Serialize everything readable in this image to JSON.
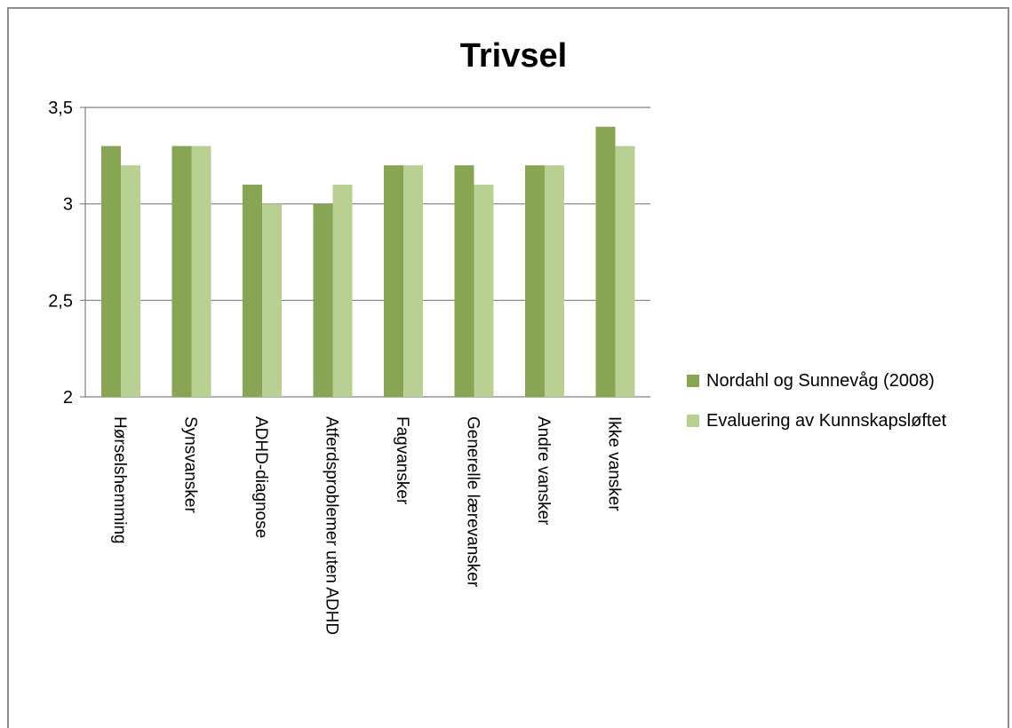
{
  "chart_data": {
    "type": "bar",
    "title": "Trivsel",
    "xlabel": "",
    "ylabel": "",
    "ylim": [
      2,
      3.5
    ],
    "yticks": [
      "2",
      "2,5",
      "3",
      "3,5"
    ],
    "ytick_values": [
      2,
      2.5,
      3,
      3.5
    ],
    "grid": true,
    "legend_position": "right",
    "categories": [
      "Hørselshemming",
      "Synsvansker",
      "ADHD-diagnose",
      "Atferdsproblemer uten ADHD",
      "Fagvansker",
      "Generelle lærevansker",
      "Andre vansker",
      "Ikke vansker"
    ],
    "series": [
      {
        "name": "Nordahl og Sunnevåg (2008)",
        "color": "#87a553",
        "values": [
          3.3,
          3.3,
          3.1,
          3.0,
          3.2,
          3.2,
          3.2,
          3.4
        ]
      },
      {
        "name": "Evaluering av Kunnskapsløftet",
        "color": "#b9d093",
        "values": [
          3.2,
          3.3,
          3.0,
          3.1,
          3.2,
          3.1,
          3.2,
          3.3
        ]
      }
    ]
  }
}
